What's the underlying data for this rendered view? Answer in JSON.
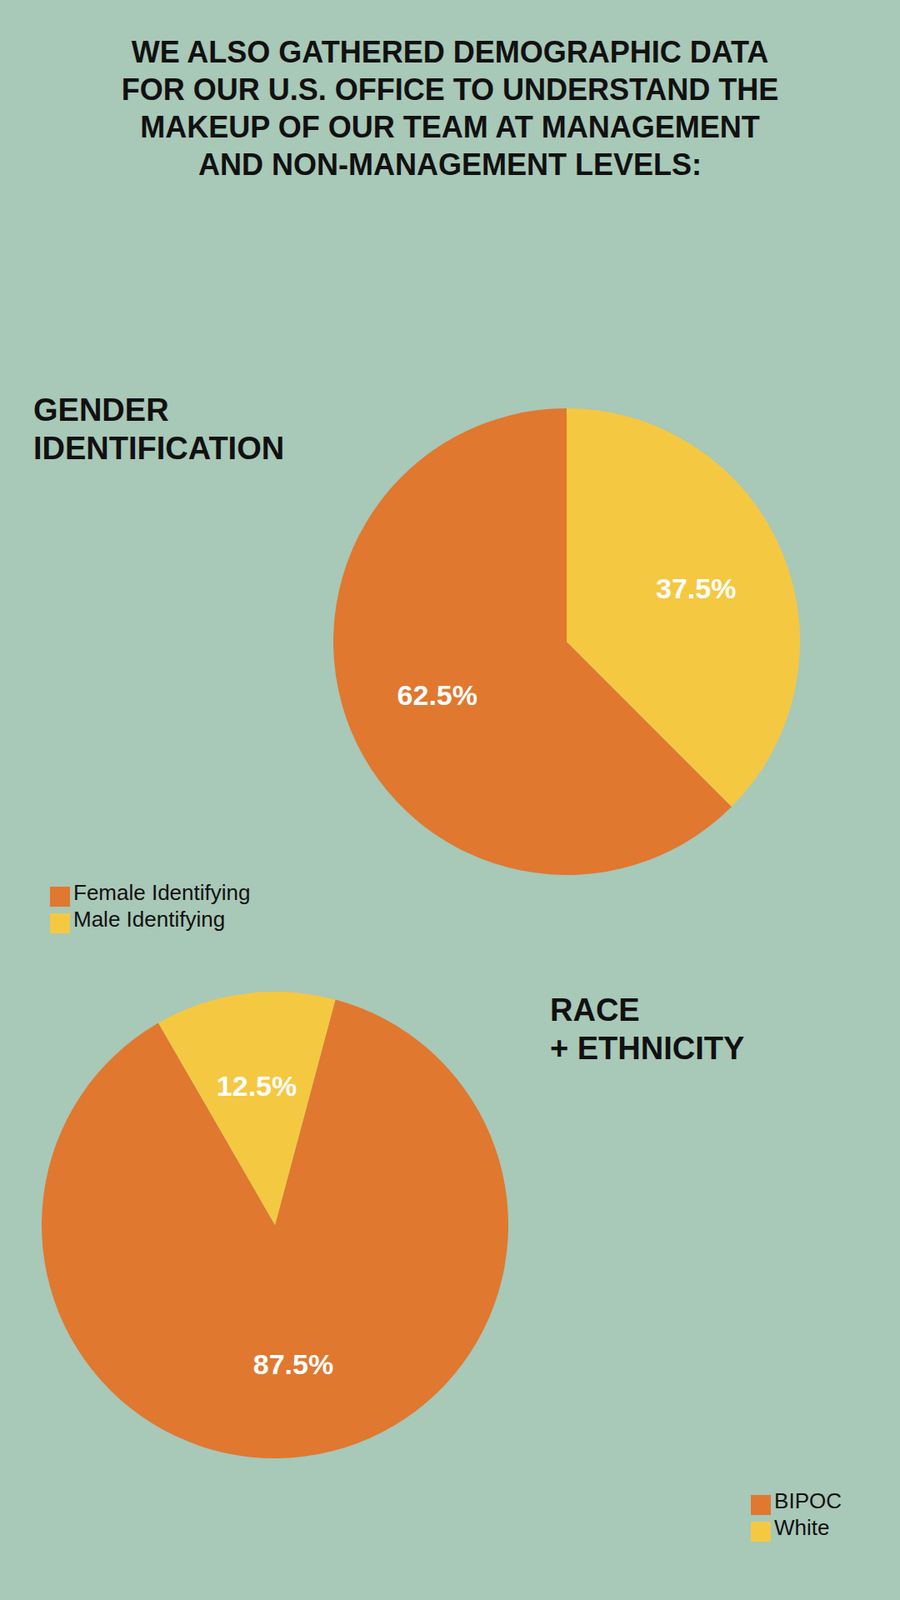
{
  "chart_data": [
    {
      "type": "pie",
      "title": "WE ALSO GATHERED DEMOGRAPHIC DATA\nFOR OUR U.S. OFFICE TO UNDERSTAND THE\nMAKEUP OF OUR TEAM AT MANAGEMENT\nAND NON-MANAGEMENT LEVELS:",
      "subtitle": "GENDER\nIDENTIFICATION",
      "categories": [
        "Female Identifying",
        "Male Identifying"
      ],
      "values": [
        62.5,
        37.5
      ],
      "value_labels": [
        "62.5%",
        "37.5%"
      ],
      "colors": [
        "#E07830",
        "#F5C842"
      ],
      "data_labels": true,
      "legend": "lower left"
    },
    {
      "type": "pie",
      "subtitle": "RACE\n+ ETHNICITY",
      "categories": [
        "BIPOC",
        "White"
      ],
      "values": [
        87.5,
        12.5
      ],
      "value_labels": [
        "87.5%",
        "12.5%"
      ],
      "colors": [
        "#E07830",
        "#F5C842"
      ],
      "data_labels": true,
      "legend": "lower right"
    }
  ]
}
